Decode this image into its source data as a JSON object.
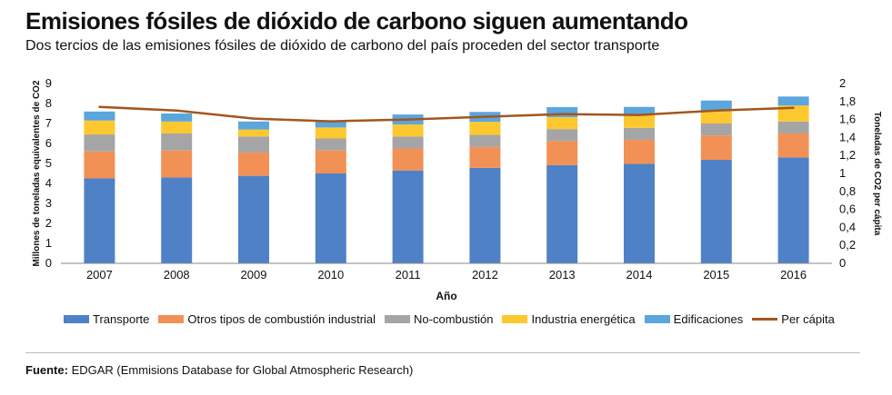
{
  "header": {
    "title": "Emisiones fósiles de dióxido de carbono siguen aumentando",
    "subtitle": "Dos tercios de las emisiones fósiles de dióxido de carbono del país proceden del sector transporte"
  },
  "chart_data": {
    "type": "bar",
    "stacked": true,
    "categories": [
      "2007",
      "2008",
      "2009",
      "2010",
      "2011",
      "2012",
      "2013",
      "2014",
      "2015",
      "2016"
    ],
    "series": [
      {
        "name": "Transporte",
        "color": "#4f81c7",
        "values": [
          4.25,
          4.3,
          4.38,
          4.5,
          4.65,
          4.78,
          4.92,
          4.98,
          5.18,
          5.3
        ]
      },
      {
        "name": "Otros tipos de combustión industrial",
        "color": "#f29155",
        "values": [
          1.35,
          1.35,
          1.17,
          1.15,
          1.1,
          1.05,
          1.2,
          1.2,
          1.22,
          1.2
        ]
      },
      {
        "name": "No-combustión",
        "color": "#a5a5a5",
        "values": [
          0.85,
          0.85,
          0.8,
          0.6,
          0.6,
          0.6,
          0.6,
          0.6,
          0.6,
          0.6
        ]
      },
      {
        "name": "Industria energética",
        "color": "#fdc82f",
        "values": [
          0.7,
          0.6,
          0.35,
          0.55,
          0.6,
          0.65,
          0.6,
          0.65,
          0.65,
          0.8
        ]
      },
      {
        "name": "Edificaciones",
        "color": "#5ba6dd",
        "values": [
          0.45,
          0.4,
          0.4,
          0.35,
          0.5,
          0.5,
          0.5,
          0.4,
          0.5,
          0.45
        ]
      }
    ],
    "line": {
      "name": "Per cápita",
      "color": "#a3561f",
      "axis": "right",
      "values": [
        1.74,
        1.7,
        1.61,
        1.58,
        1.6,
        1.63,
        1.66,
        1.65,
        1.7,
        1.73
      ]
    },
    "ylim": [
      0,
      9
    ],
    "yticks": [
      "0",
      "1",
      "2",
      "3",
      "4",
      "5",
      "6",
      "7",
      "8",
      "9"
    ],
    "y2lim": [
      0,
      2
    ],
    "y2ticks": [
      "0",
      "0,2",
      "0,4",
      "0,6",
      "0,8",
      "1",
      "1,2",
      "1,4",
      "1,6",
      "1,8",
      "2"
    ],
    "ylabel": "Millones de toneladas equivalentes de CO2",
    "y2label": "Toneladas de CO2 per cápita",
    "xlabel": "Año",
    "legend_position": "bottom"
  },
  "source": {
    "label": "Fuente:",
    "text": "EDGAR (Emmisions Database for Global Atmospheric Research)"
  }
}
